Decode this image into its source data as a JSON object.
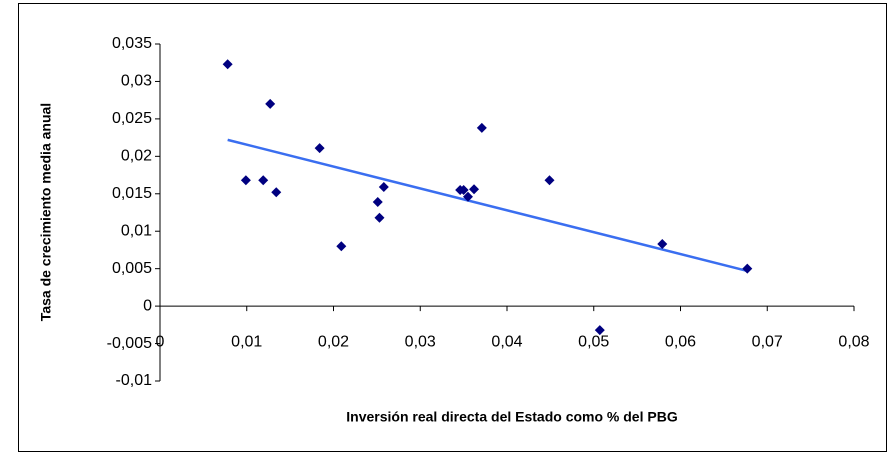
{
  "chart_data": {
    "type": "scatter",
    "x_label": "Inversión real directa del Estado como % del PBG",
    "y_label": "Tasa de crecimiento media anual",
    "x": [
      0.0078,
      0.0099,
      0.0119,
      0.0134,
      0.0127,
      0.0184,
      0.0209,
      0.0251,
      0.0253,
      0.0258,
      0.0346,
      0.035,
      0.0355,
      0.0362,
      0.0371,
      0.0449,
      0.0507,
      0.0579,
      0.0677
    ],
    "values": [
      0.0323,
      0.0168,
      0.0168,
      0.0152,
      0.027,
      0.0211,
      0.008,
      0.0139,
      0.0118,
      0.0159,
      0.0155,
      0.0155,
      0.0146,
      0.0156,
      0.0238,
      0.0168,
      -0.0032,
      0.0083,
      0.005
    ],
    "color": "#000080",
    "trendline": {
      "x": [
        0.0078,
        0.0677
      ],
      "values": [
        0.0222,
        0.0047
      ],
      "color": "#3a6ef0"
    },
    "xlim": [
      0,
      0.08
    ],
    "xticks": [
      0,
      {
        "value": 0.01,
        "label": "0,01"
      },
      {
        "value": 0.02,
        "label": "0,02"
      },
      {
        "value": 0.03,
        "label": "0,03"
      },
      {
        "value": 0.04,
        "label": "0,04"
      },
      {
        "value": 0.05,
        "label": "0,05"
      },
      {
        "value": 0.06,
        "label": "0,06"
      },
      {
        "value": 0.07,
        "label": "0,07"
      },
      {
        "value": 0.08,
        "label": "0,08"
      }
    ],
    "ylim": [
      -0.01,
      0.035
    ],
    "yticks": [
      {
        "value": -0.01,
        "label": "-0,01"
      },
      {
        "value": -0.005,
        "label": "-0,005"
      },
      0,
      {
        "value": 0.005,
        "label": "0,005"
      },
      {
        "value": 0.01,
        "label": "0,01"
      },
      {
        "value": 0.015,
        "label": "0,015"
      },
      {
        "value": 0.02,
        "label": "0,02"
      },
      {
        "value": 0.025,
        "label": "0,025"
      },
      {
        "value": 0.03,
        "label": "0,03"
      },
      {
        "value": 0.035,
        "label": "0,035"
      }
    ],
    "grid": false
  }
}
